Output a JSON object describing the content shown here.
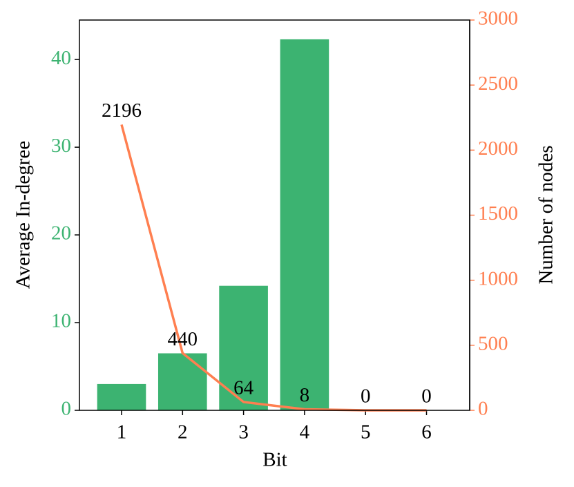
{
  "chart_data": {
    "type": "combo",
    "xlabel": "Bit",
    "ylabel": "Average In-degree",
    "y2label": "Number of nodes",
    "categories": [
      "1",
      "2",
      "3",
      "4",
      "5",
      "6"
    ],
    "series": [
      {
        "type": "bar",
        "color": "#3cb371",
        "values": [
          3.0,
          6.5,
          14.2,
          42.3,
          0,
          0
        ]
      },
      {
        "type": "line",
        "axis": "y2",
        "color": "#ff7f50",
        "values": [
          2196,
          440,
          64,
          8,
          0,
          0
        ]
      }
    ],
    "ylim": [
      0,
      44.5
    ],
    "yticks": [
      0,
      10,
      20,
      30,
      40
    ],
    "y2lim": [
      0,
      3000
    ],
    "y2ticks": [
      0,
      500,
      1000,
      1500,
      2000,
      2500,
      3000
    ]
  }
}
